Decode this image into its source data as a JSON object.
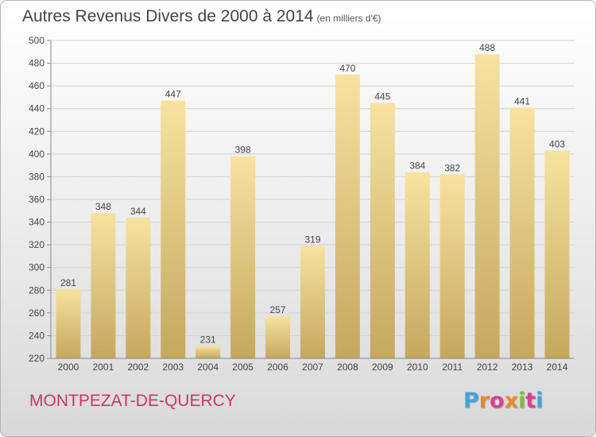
{
  "title": "Autres Revenus Divers de 2000 à 2014",
  "subtitle": "(en milliers d'€)",
  "location": "MONTPEZAT-DE-QUERCY",
  "brand": "Proxiti",
  "colors": {
    "bar_top": "#f7e2a0",
    "bar_bottom": "#c4a85e",
    "location_text": "#c8366b",
    "logo_letters": [
      "#3fa4dc",
      "#e88a2a",
      "#d9418f",
      "#e88a2a",
      "#7bbf3a",
      "#d9418f",
      "#3fa4dc"
    ]
  },
  "chart_data": {
    "type": "bar",
    "title": "Autres Revenus Divers de 2000 à 2014",
    "xlabel": "",
    "ylabel": "",
    "categories": [
      "2000",
      "2001",
      "2002",
      "2003",
      "2004",
      "2005",
      "2006",
      "2007",
      "2008",
      "2009",
      "2010",
      "2011",
      "2012",
      "2013",
      "2014"
    ],
    "values": [
      281,
      348,
      344,
      447,
      231,
      398,
      257,
      319,
      470,
      445,
      384,
      382,
      488,
      441,
      403
    ],
    "ylim": [
      220,
      500
    ],
    "yticks": [
      220,
      240,
      260,
      280,
      300,
      320,
      340,
      360,
      380,
      400,
      420,
      440,
      460,
      480,
      500
    ],
    "grid": true,
    "legend": "none"
  }
}
